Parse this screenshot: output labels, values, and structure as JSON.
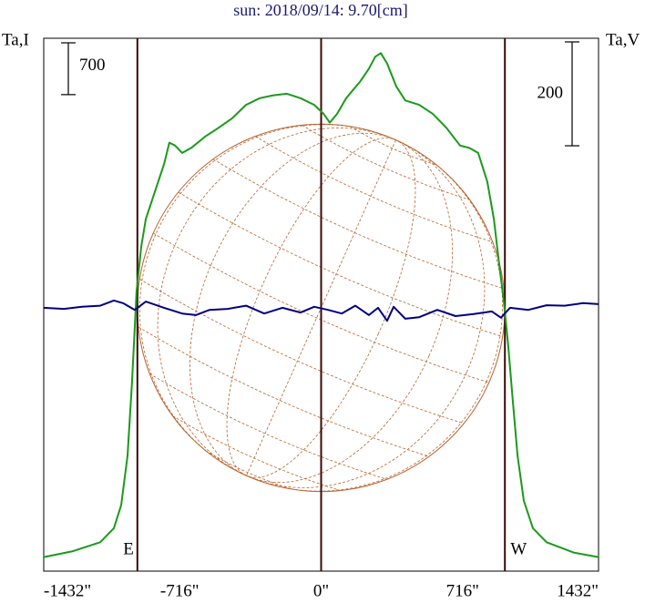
{
  "chart_data": {
    "type": "line",
    "title": "sun: 2018/09/14: 9.70[cm]",
    "y_label": "Ta,I",
    "y2_label": "Ta,V",
    "xlim": [
      -1404,
      1404
    ],
    "xticks": [
      {
        "value": -1432,
        "label": "-1432\""
      },
      {
        "value": -716,
        "label": "-716\""
      },
      {
        "value": 0,
        "label": "0\""
      },
      {
        "value": 716,
        "label": "716\""
      },
      {
        "value": 1432,
        "label": "1432\""
      }
    ],
    "ylim": [
      0,
      7200
    ],
    "y2lim": [
      -507,
      519
    ],
    "scale_bars": [
      {
        "value": 700,
        "axis": "y"
      },
      {
        "value": 200,
        "axis": "y2"
      }
    ],
    "limbs": [
      {
        "label": "E",
        "x": -930
      },
      {
        "label": "W",
        "x": 930
      }
    ],
    "disk_color": "#b8642e",
    "series": [
      {
        "color": "#1a9a1a",
        "x": [
          -1404,
          -1256,
          -1118,
          -1049,
          -1012,
          -980,
          -957,
          -934,
          -910,
          -887,
          -841,
          -795,
          -768,
          -739,
          -703,
          -657,
          -588,
          -519,
          -450,
          -380,
          -311,
          -242,
          -173,
          -104,
          -35,
          12,
          44,
          81,
          127,
          196,
          242,
          274,
          302,
          334,
          380,
          426,
          496,
          565,
          634,
          703,
          749,
          795,
          841,
          874,
          901,
          924,
          947,
          970,
          994,
          1026,
          1072,
          1141,
          1279,
          1404
        ],
        "values": [
          190,
          270,
          390,
          580,
          890,
          1560,
          2550,
          3780,
          4390,
          4760,
          5130,
          5500,
          5790,
          5750,
          5650,
          5720,
          5870,
          5990,
          6120,
          6300,
          6390,
          6430,
          6450,
          6390,
          6300,
          6180,
          6060,
          6180,
          6390,
          6610,
          6790,
          6950,
          7000,
          6860,
          6550,
          6360,
          6300,
          6180,
          5990,
          5750,
          5720,
          5650,
          5260,
          4760,
          4150,
          3660,
          3040,
          2300,
          1560,
          950,
          580,
          390,
          250,
          190
        ]
      },
      {
        "color": "#000080",
        "axis": "y2",
        "x": [
          -1404,
          -1302,
          -1210,
          -1118,
          -1049,
          -1003,
          -943,
          -887,
          -795,
          -703,
          -634,
          -565,
          -473,
          -380,
          -288,
          -196,
          -104,
          -35,
          35,
          104,
          173,
          242,
          288,
          334,
          367,
          426,
          496,
          588,
          680,
          772,
          864,
          910,
          956,
          1049,
          1141,
          1233,
          1325,
          1404
        ],
        "values": [
          0,
          -2,
          2,
          4,
          14,
          9,
          -4,
          12,
          0,
          -11,
          -14,
          -4,
          -2,
          4,
          -11,
          0,
          -9,
          2,
          -4,
          -11,
          4,
          -14,
          0,
          -25,
          2,
          -21,
          -18,
          -4,
          -16,
          -12,
          -7,
          -19,
          0,
          -4,
          5,
          4,
          9,
          7
        ]
      }
    ]
  }
}
